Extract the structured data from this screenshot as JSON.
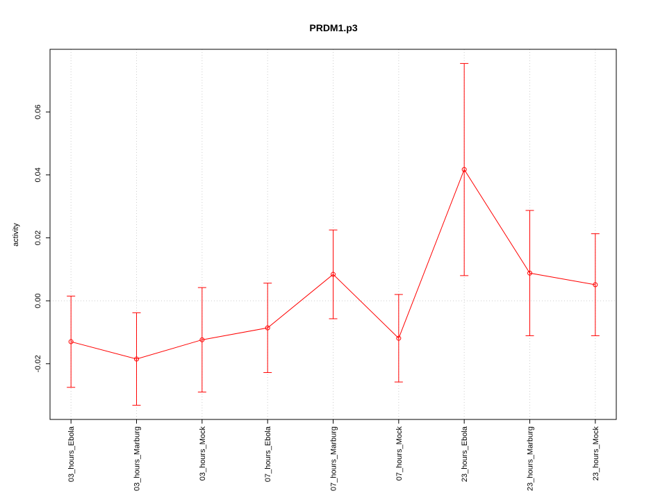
{
  "chart_data": {
    "type": "line",
    "title": "PRDM1.p3",
    "y_label": "activity",
    "categories": [
      "03_hours_Ebola",
      "03_hours_Marburg",
      "03_hours_Mock",
      "07_hours_Ebola",
      "07_hours_Marburg",
      "07_hours_Mock",
      "23_hours_Ebola",
      "23_hours_Marburg",
      "23_hours_Mock"
    ],
    "series": [
      {
        "color": "#ff0000",
        "values": [
          -0.013,
          -0.0185,
          -0.0124,
          -0.0086,
          0.0084,
          -0.0119,
          0.0417,
          0.0088,
          0.0051
        ],
        "errors": [
          0.0145,
          0.0147,
          0.0166,
          0.0142,
          0.0141,
          0.0139,
          0.0337,
          0.0199,
          0.0162
        ]
      }
    ],
    "ylim": [
      -0.0377,
      0.0799
    ],
    "yticks": [
      -0.02,
      {
        "value": 0,
        "label": "0.00"
      },
      0.02,
      0.04,
      0.06
    ],
    "grid": true,
    "grid_y": [
      0
    ]
  }
}
